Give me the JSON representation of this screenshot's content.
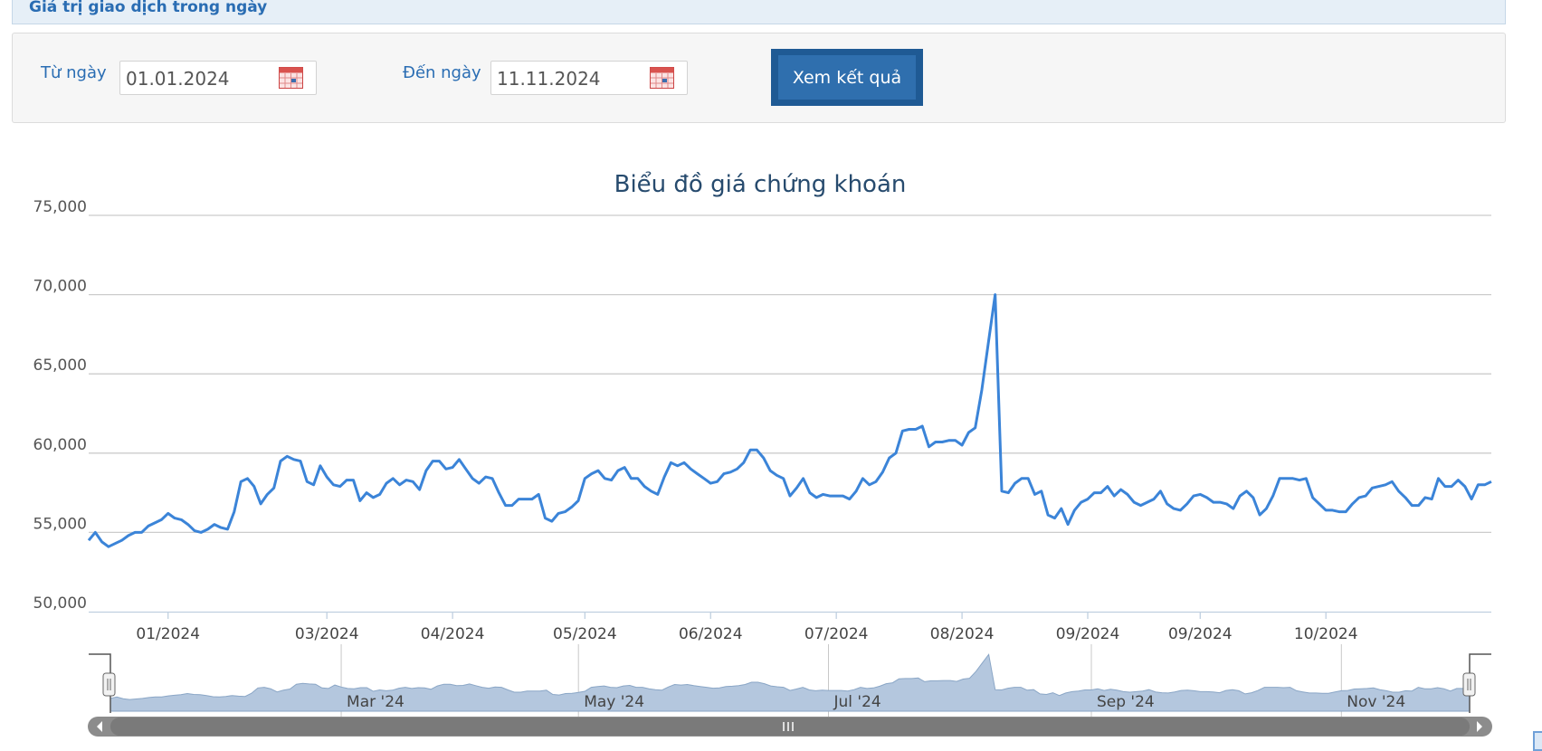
{
  "header": {
    "title": "Giá trị giao dịch trong ngày"
  },
  "filter": {
    "from_label": "Từ ngày",
    "from_value": "01.01.2024",
    "to_label": "Đến ngày",
    "to_value": "11.11.2024",
    "submit_label": "Xem kết quả",
    "calendar_icon": "calendar-icon"
  },
  "colors": {
    "line": "#3b84d8",
    "navigator_fill": "#b4c7de",
    "navigator_line": "#8aa6c6",
    "grid": "#cccccc",
    "button": "#2f6fae"
  },
  "chart_data": {
    "type": "line",
    "title": "Biểu đồ giá chứng khoán",
    "xlabel": "",
    "ylabel": "",
    "ylim": [
      50000,
      75000
    ],
    "yticks": [
      75000,
      70000,
      65000,
      60000,
      55000,
      50000
    ],
    "ytick_labels": [
      "75,000",
      "70,000",
      "65,000",
      "60,000",
      "55,000",
      "50,000"
    ],
    "xticks": [
      "01/2024",
      "03/2024",
      "04/2024",
      "05/2024",
      "06/2024",
      "07/2024",
      "08/2024",
      "09/2024",
      "09/2024",
      "10/2024"
    ],
    "xtick_positions": [
      12,
      36,
      55,
      75,
      94,
      113,
      132,
      151,
      168,
      187
    ],
    "navigator_labels": [
      "Mar '24",
      "May '24",
      "Jul '24",
      "Sep '24",
      "Nov '24"
    ],
    "navigator_positions": [
      36,
      73,
      112,
      153,
      192
    ],
    "grid": true,
    "legend": "none",
    "series": [
      {
        "values": [
          54500,
          55000,
          54400,
          54100,
          54300,
          54500,
          54800,
          55000,
          55000,
          55400,
          55600,
          55800,
          56200,
          55900,
          55800,
          55500,
          55100,
          55000,
          55200,
          55500,
          55300,
          55200,
          56300,
          58200,
          58400,
          57900,
          56800,
          57400,
          57800,
          59500,
          59800,
          59600,
          59500,
          58200,
          58000,
          59200,
          58500,
          58000,
          57900,
          58300,
          58300,
          57000,
          57500,
          57200,
          57400,
          58100,
          58400,
          58000,
          58300,
          58200,
          57700,
          58900,
          59500,
          59500,
          59000,
          59100,
          59600,
          59000,
          58400,
          58100,
          58500,
          58400,
          57500,
          56700,
          56700,
          57100,
          57100,
          57100,
          57400,
          55900,
          55700,
          56200,
          56300,
          56600,
          57000,
          58400,
          58700,
          58900,
          58400,
          58300,
          58900,
          59100,
          58400,
          58400,
          57900,
          57600,
          57400,
          58500,
          59400,
          59200,
          59400,
          59000,
          58700,
          58400,
          58100,
          58200,
          58700,
          58800,
          59000,
          59400,
          60200,
          60200,
          59700,
          58900,
          58600,
          58400,
          57300,
          57800,
          58400,
          57500,
          57200,
          57400,
          57300,
          57300,
          57300,
          57100,
          57600,
          58400,
          58000,
          58200,
          58800,
          59700,
          60000,
          61400,
          61500,
          61500,
          61700,
          60400,
          60700,
          60700,
          60800,
          60800,
          60500,
          61300,
          61600,
          64000,
          67000,
          70000,
          57600,
          57500,
          58100,
          58400,
          58400,
          57400,
          57600,
          56100,
          55900,
          56500,
          55500,
          56400,
          56900,
          57100,
          57500,
          57500,
          57900,
          57300,
          57700,
          57400,
          56900,
          56700,
          56900,
          57100,
          57600,
          56800,
          56500,
          56400,
          56800,
          57300,
          57400,
          57200,
          56900,
          56900,
          56800,
          56500,
          57300,
          57600,
          57200,
          56100,
          56500,
          57300,
          58400,
          58400,
          58400,
          58300,
          58400,
          57200,
          56800,
          56400,
          56400,
          56300,
          56300,
          56800,
          57200,
          57300,
          57800,
          57900,
          58000,
          58200,
          57600,
          57200,
          56700,
          56700,
          57200,
          57100,
          58400,
          57900,
          57900,
          58300,
          57900,
          57100,
          58000,
          58000,
          58200
        ]
      }
    ]
  }
}
